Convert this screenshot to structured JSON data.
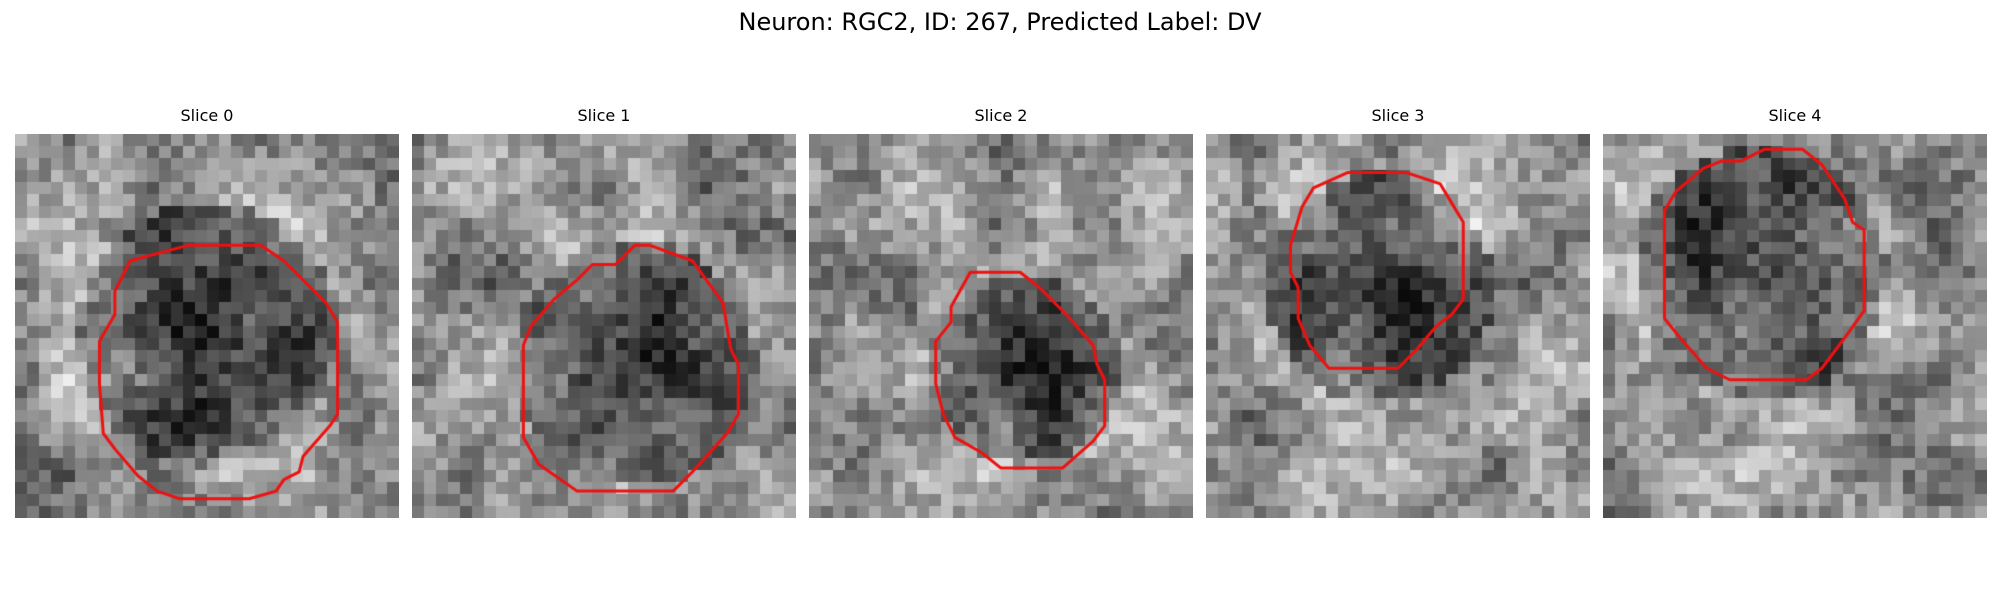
{
  "figure": {
    "title": "Neuron: RGC2, ID: 267, Predicted Label: DV"
  },
  "colors": {
    "contour": "#ee1111",
    "colormap": "gray"
  },
  "panels": [
    {
      "title": "Slice 0",
      "dark_center": [
        0.5,
        0.52
      ],
      "dark_radius": 0.34,
      "contour": [
        [
          0.45,
          0.29
        ],
        [
          0.64,
          0.29
        ],
        [
          0.7,
          0.33
        ],
        [
          0.81,
          0.44
        ],
        [
          0.84,
          0.49
        ],
        [
          0.84,
          0.73
        ],
        [
          0.82,
          0.76
        ],
        [
          0.75,
          0.84
        ],
        [
          0.74,
          0.88
        ],
        [
          0.7,
          0.9
        ],
        [
          0.68,
          0.93
        ],
        [
          0.61,
          0.95
        ],
        [
          0.43,
          0.95
        ],
        [
          0.37,
          0.93
        ],
        [
          0.32,
          0.89
        ],
        [
          0.26,
          0.82
        ],
        [
          0.23,
          0.78
        ],
        [
          0.22,
          0.65
        ],
        [
          0.22,
          0.54
        ],
        [
          0.26,
          0.47
        ],
        [
          0.26,
          0.41
        ],
        [
          0.3,
          0.33
        ]
      ]
    },
    {
      "title": "Slice 1",
      "dark_center": [
        0.58,
        0.6
      ],
      "dark_radius": 0.32,
      "contour": [
        [
          0.47,
          0.34
        ],
        [
          0.53,
          0.34
        ],
        [
          0.58,
          0.29
        ],
        [
          0.62,
          0.29
        ],
        [
          0.73,
          0.33
        ],
        [
          0.81,
          0.44
        ],
        [
          0.83,
          0.56
        ],
        [
          0.85,
          0.6
        ],
        [
          0.85,
          0.73
        ],
        [
          0.82,
          0.78
        ],
        [
          0.73,
          0.88
        ],
        [
          0.68,
          0.93
        ],
        [
          0.43,
          0.93
        ],
        [
          0.33,
          0.86
        ],
        [
          0.29,
          0.79
        ],
        [
          0.29,
          0.55
        ],
        [
          0.31,
          0.5
        ],
        [
          0.37,
          0.43
        ],
        [
          0.43,
          0.38
        ]
      ]
    },
    {
      "title": "Slice 2",
      "dark_center": [
        0.56,
        0.61
      ],
      "dark_radius": 0.25,
      "contour": [
        [
          0.42,
          0.36
        ],
        [
          0.55,
          0.36
        ],
        [
          0.6,
          0.4
        ],
        [
          0.67,
          0.47
        ],
        [
          0.74,
          0.55
        ],
        [
          0.75,
          0.6
        ],
        [
          0.77,
          0.64
        ],
        [
          0.77,
          0.76
        ],
        [
          0.74,
          0.8
        ],
        [
          0.66,
          0.87
        ],
        [
          0.5,
          0.87
        ],
        [
          0.45,
          0.83
        ],
        [
          0.38,
          0.79
        ],
        [
          0.35,
          0.73
        ],
        [
          0.33,
          0.65
        ],
        [
          0.33,
          0.54
        ],
        [
          0.37,
          0.49
        ],
        [
          0.37,
          0.45
        ]
      ]
    },
    {
      "title": "Slice 3",
      "dark_center": [
        0.45,
        0.4
      ],
      "dark_radius": 0.3,
      "contour": [
        [
          0.37,
          0.1
        ],
        [
          0.52,
          0.1
        ],
        [
          0.61,
          0.13
        ],
        [
          0.64,
          0.18
        ],
        [
          0.67,
          0.23
        ],
        [
          0.67,
          0.43
        ],
        [
          0.64,
          0.47
        ],
        [
          0.6,
          0.5
        ],
        [
          0.55,
          0.56
        ],
        [
          0.5,
          0.61
        ],
        [
          0.32,
          0.61
        ],
        [
          0.27,
          0.55
        ],
        [
          0.24,
          0.48
        ],
        [
          0.24,
          0.4
        ],
        [
          0.22,
          0.36
        ],
        [
          0.22,
          0.29
        ],
        [
          0.25,
          0.19
        ],
        [
          0.28,
          0.14
        ]
      ]
    },
    {
      "title": "Slice 4",
      "dark_center": [
        0.41,
        0.36
      ],
      "dark_radius": 0.33,
      "contour": [
        [
          0.42,
          0.04
        ],
        [
          0.52,
          0.04
        ],
        [
          0.57,
          0.08
        ],
        [
          0.61,
          0.14
        ],
        [
          0.63,
          0.17
        ],
        [
          0.65,
          0.23
        ],
        [
          0.68,
          0.25
        ],
        [
          0.68,
          0.46
        ],
        [
          0.63,
          0.53
        ],
        [
          0.57,
          0.61
        ],
        [
          0.53,
          0.64
        ],
        [
          0.33,
          0.64
        ],
        [
          0.27,
          0.61
        ],
        [
          0.2,
          0.53
        ],
        [
          0.16,
          0.48
        ],
        [
          0.16,
          0.2
        ],
        [
          0.19,
          0.15
        ],
        [
          0.26,
          0.09
        ],
        [
          0.31,
          0.07
        ],
        [
          0.36,
          0.07
        ]
      ]
    }
  ]
}
